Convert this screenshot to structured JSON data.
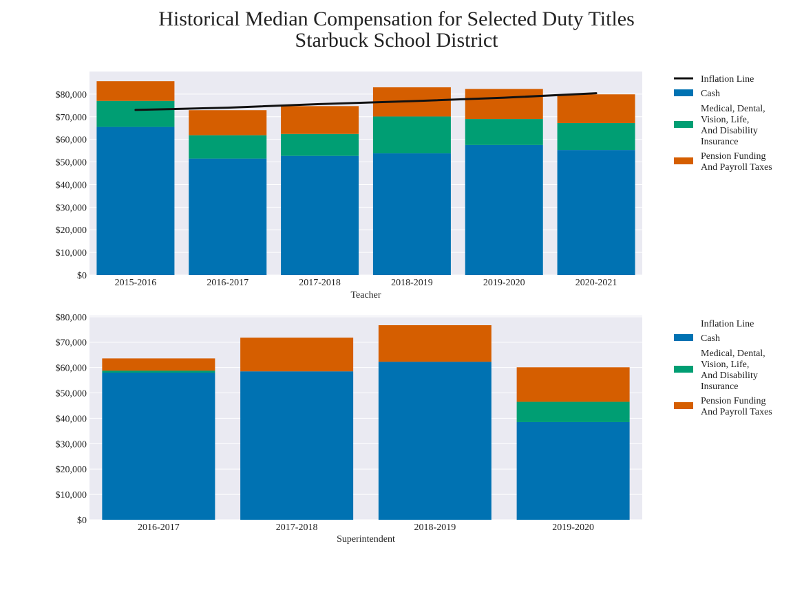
{
  "title_line1": "Historical Median Compensation for Selected Duty Titles",
  "title_line2": "Starbuck School District",
  "colors": {
    "cash": "#0072b2",
    "medical": "#009e73",
    "pension": "#d55e00",
    "inflation": "#111111",
    "plot_bg": "#eaeaf2",
    "grid": "#ffffff"
  },
  "chart_data": [
    {
      "type": "bar",
      "stacked": true,
      "xlabel": "Teacher",
      "ylabel": "",
      "ylim": [
        0,
        90000
      ],
      "yticks": [
        0,
        10000,
        20000,
        30000,
        40000,
        50000,
        60000,
        70000,
        80000
      ],
      "ytick_labels": [
        "$0",
        "$10,000",
        "$20,000",
        "$30,000",
        "$40,000",
        "$50,000",
        "$60,000",
        "$70,000",
        "$80,000"
      ],
      "grid": true,
      "legend_position": "right",
      "categories": [
        "2015-2016",
        "2016-2017",
        "2017-2018",
        "2018-2019",
        "2019-2020",
        "2020-2021"
      ],
      "series": [
        {
          "name": "Cash",
          "values": [
            65500,
            51500,
            52700,
            53800,
            57500,
            55300
          ]
        },
        {
          "name": "Medical, Dental, Vision, Life, And Disability Insurance",
          "values": [
            11500,
            10300,
            9700,
            16300,
            11500,
            11900
          ]
        },
        {
          "name": "Pension Funding And Payroll Taxes",
          "values": [
            8700,
            11100,
            12300,
            12900,
            13300,
            12700
          ]
        }
      ],
      "line": {
        "name": "Inflation Line",
        "values": [
          73000,
          74000,
          75600,
          76900,
          78400,
          80400
        ]
      },
      "legend": [
        "Inflation Line",
        "Cash",
        "Medical, Dental, Vision, Life, And Disability Insurance",
        "Pension Funding And Payroll Taxes"
      ]
    },
    {
      "type": "bar",
      "stacked": true,
      "xlabel": "Superintendent",
      "ylabel": "",
      "ylim": [
        0,
        80500
      ],
      "yticks": [
        0,
        10000,
        20000,
        30000,
        40000,
        50000,
        60000,
        70000,
        80000
      ],
      "ytick_labels": [
        "$0",
        "$10,000",
        "$20,000",
        "$30,000",
        "$40,000",
        "$50,000",
        "$60,000",
        "$70,000",
        "$80,000"
      ],
      "grid": true,
      "legend_position": "right",
      "categories": [
        "2016-2017",
        "2017-2018",
        "2018-2019",
        "2019-2020"
      ],
      "series": [
        {
          "name": "Cash",
          "values": [
            58000,
            58500,
            62300,
            38500
          ]
        },
        {
          "name": "Medical, Dental, Vision, Life, And Disability Insurance",
          "values": [
            800,
            0,
            0,
            8000
          ]
        },
        {
          "name": "Pension Funding And Payroll Taxes",
          "values": [
            4800,
            13300,
            14400,
            13600
          ]
        }
      ],
      "legend": [
        "Inflation Line",
        "Cash",
        "Medical, Dental, Vision, Life, And Disability Insurance",
        "Pension Funding And Payroll Taxes"
      ]
    }
  ]
}
